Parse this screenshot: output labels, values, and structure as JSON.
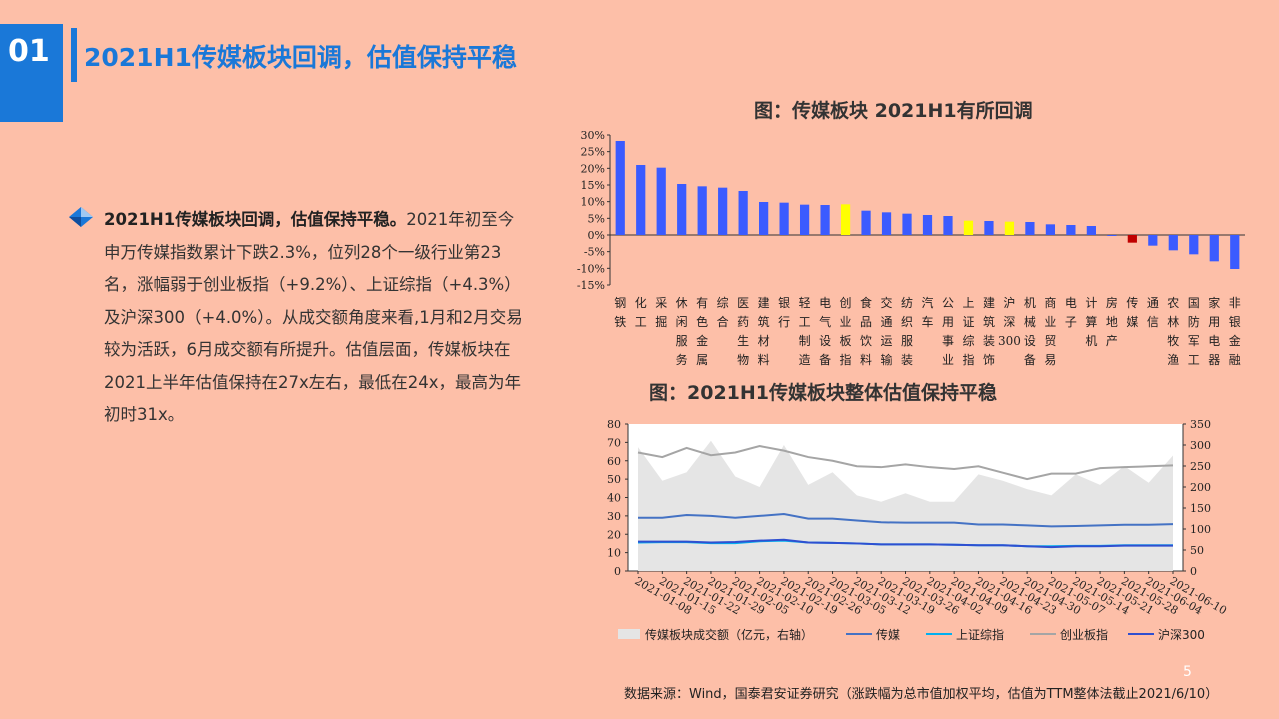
{
  "header": {
    "badge": "01",
    "title": "2021H1传媒板块回调，估值保持平稳"
  },
  "summary": {
    "bold": "2021H1传媒板块回调，估值保持平稳。",
    "text": "2021年初至今申万传媒指数累计下跌2.3%，位列28个一级行业第23名，涨幅弱于创业板指（+9.2%）、上证综指（+4.3%）及沪深300（+4.0%）。从成交额角度来看,1月和2月交易较为活跃，6月成交额有所提升。估值层面，传媒板块在2021上半年估值保持在27x左右，最低在24x，最高为年初时31x。"
  },
  "chart_data": [
    {
      "type": "bar",
      "title": "图：传媒板块 2021H1有所回调",
      "categories": [
        "钢铁",
        "化工",
        "采掘",
        "休闲服务",
        "有色金属",
        "综合",
        "医药生物",
        "建筑材料",
        "银行",
        "轻工制造",
        "电气设备",
        "创业板指",
        "食品饮料",
        "交通运输",
        "纺织服装",
        "汽车",
        "公用事业",
        "上证综指",
        "建筑装饰",
        "沪深300",
        "机械设备",
        "商业贸易",
        "电子",
        "计算机",
        "房地产",
        "传媒",
        "通信",
        "农林牧渔",
        "国防军工",
        "家用电器",
        "非银金融"
      ],
      "values": [
        28.2,
        21.0,
        20.2,
        15.3,
        14.6,
        14.2,
        13.2,
        9.9,
        9.7,
        9.1,
        9.0,
        9.2,
        7.3,
        6.8,
        6.4,
        6.0,
        5.7,
        4.3,
        4.2,
        4.0,
        3.9,
        3.2,
        3.0,
        2.7,
        -0.3,
        -2.3,
        -3.2,
        -4.6,
        -5.8,
        -7.9,
        -10.2
      ],
      "highlight_yellow": [
        "创业板指",
        "上证综指",
        "沪深300"
      ],
      "highlight_red": [
        "传媒"
      ],
      "ylim": [
        -15,
        30
      ],
      "yticks": [
        "30%",
        "25%",
        "20%",
        "15%",
        "10%",
        "5%",
        "0%",
        "-5%",
        "-10%",
        "-15%"
      ],
      "colors": {
        "bar": "#3B5BFF",
        "highlight": "#FFFF00",
        "target": "#C00000"
      }
    },
    {
      "type": "line",
      "title": "图：2021H1传媒板块整体估值保持平稳",
      "x": [
        "2021-01-08",
        "2021-01-15",
        "2021-01-22",
        "2021-01-29",
        "2021-02-05",
        "2021-02-10",
        "2021-02-19",
        "2021-02-26",
        "2021-03-05",
        "2021-03-12",
        "2021-03-19",
        "2021-03-26",
        "2021-04-02",
        "2021-04-09",
        "2021-04-16",
        "2021-04-23",
        "2021-04-30",
        "2021-05-07",
        "2021-05-14",
        "2021-05-21",
        "2021-05-28",
        "2021-06-04",
        "2021-06-10"
      ],
      "ylim_left": [
        0,
        80
      ],
      "ylim_right": [
        0,
        350
      ],
      "yticks_left": [
        "0",
        "10",
        "20",
        "30",
        "40",
        "50",
        "60",
        "70",
        "80"
      ],
      "yticks_right": [
        "0",
        "50",
        "100",
        "150",
        "200",
        "250",
        "300",
        "350"
      ],
      "area_right": [
        295,
        215,
        235,
        310,
        225,
        200,
        300,
        205,
        235,
        180,
        165,
        185,
        165,
        165,
        230,
        215,
        195,
        180,
        230,
        205,
        250,
        210,
        275
      ],
      "series": [
        {
          "name": "传媒板块成交额（亿元，右轴）",
          "axis": "right",
          "type": "area",
          "color": "#E5E5E5"
        },
        {
          "name": "传媒",
          "axis": "left",
          "color": "#4472C4",
          "values": [
            29,
            29,
            30.5,
            30,
            29,
            30,
            31,
            28.5,
            28.5,
            27.5,
            26.5,
            26.3,
            26.3,
            26.3,
            25.3,
            25.3,
            24.8,
            24.3,
            24.5,
            24.8,
            25.2,
            25.2,
            25.5
          ]
        },
        {
          "name": "上证综指",
          "axis": "left",
          "color": "#00B0F0",
          "values": [
            15.5,
            15.7,
            15.7,
            15.2,
            15.2,
            16.2,
            16.5,
            15.5,
            15.3,
            15,
            14.5,
            14.5,
            14.5,
            14.3,
            14,
            14,
            13.5,
            13.5,
            13.7,
            13.7,
            14,
            14,
            14
          ]
        },
        {
          "name": "创业板指",
          "axis": "left",
          "color": "#A5A5A5",
          "values": [
            64.5,
            62,
            67,
            63,
            64.5,
            68,
            65.5,
            62,
            60,
            57,
            56.5,
            58,
            56.5,
            55.5,
            57,
            53.5,
            50,
            53,
            53,
            56,
            56.5,
            57,
            57.5
          ]
        },
        {
          "name": "沪深300",
          "axis": "left",
          "color": "#2F4FD0",
          "values": [
            16,
            16,
            16,
            15.5,
            15.8,
            16.5,
            17,
            15.5,
            15.3,
            15,
            14.5,
            14.5,
            14.5,
            14.3,
            14,
            14,
            13.5,
            13,
            13.5,
            13.5,
            13.8,
            13.8,
            13.8
          ]
        }
      ],
      "colors": {
        "background": "#FFFFFF",
        "area": "#E5E5E5"
      }
    }
  ],
  "footer": {
    "page": "5",
    "source": "数据来源：Wind，国泰君安证券研究（涨跌幅为总市值加权平均，估值为TTM整体法截止2021/6/10）"
  }
}
